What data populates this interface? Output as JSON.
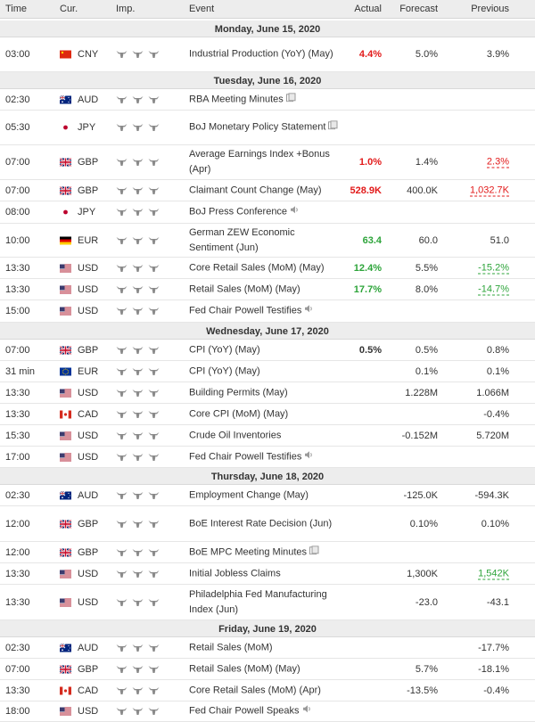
{
  "header": {
    "time": "Time",
    "currency": "Cur.",
    "importance": "Imp.",
    "event": "Event",
    "actual": "Actual",
    "forecast": "Forecast",
    "previous": "Previous"
  },
  "colors": {
    "header_bg": "#ededed",
    "positive": "#2da43a",
    "negative": "#e21a1a",
    "bull_icon": "#8a8a8a"
  },
  "icons": {
    "document": "document-icon",
    "speaker": "speaker-icon",
    "importance": "bull-icon"
  },
  "days": [
    {
      "date": "Monday, June 15, 2020",
      "events": [
        {
          "time": "03:00",
          "flag": "cn",
          "currency": "CNY",
          "event": "Industrial Production (YoY) (May)",
          "actual": "4.4%",
          "actual_color": "red",
          "forecast": "5.0%",
          "previous": "3.9%"
        }
      ]
    },
    {
      "date": "Tuesday, June 16, 2020",
      "events": [
        {
          "time": "02:30",
          "flag": "au",
          "currency": "AUD",
          "event": "RBA Meeting Minutes",
          "icon": "document",
          "actual": "",
          "forecast": "",
          "previous": ""
        },
        {
          "time": "05:30",
          "flag": "jp",
          "currency": "JPY",
          "event": "BoJ Monetary Policy Statement",
          "icon": "document",
          "actual": "",
          "forecast": "",
          "previous": ""
        },
        {
          "time": "07:00",
          "flag": "gb",
          "currency": "GBP",
          "event": "Average Earnings Index +Bonus (Apr)",
          "actual": "1.0%",
          "actual_color": "red",
          "forecast": "1.4%",
          "previous": "2.3%",
          "previous_color": "red"
        },
        {
          "time": "07:00",
          "flag": "gb",
          "currency": "GBP",
          "event": "Claimant Count Change (May)",
          "actual": "528.9K",
          "actual_color": "red",
          "forecast": "400.0K",
          "previous": "1,032.7K",
          "previous_color": "red"
        },
        {
          "time": "08:00",
          "flag": "jp",
          "currency": "JPY",
          "event": "BoJ Press Conference",
          "icon": "speaker",
          "actual": "",
          "forecast": "",
          "previous": ""
        },
        {
          "time": "10:00",
          "flag": "de",
          "currency": "EUR",
          "event": "German ZEW Economic Sentiment (Jun)",
          "actual": "63.4",
          "actual_color": "green",
          "forecast": "60.0",
          "previous": "51.0"
        },
        {
          "time": "13:30",
          "flag": "us",
          "currency": "USD",
          "event": "Core Retail Sales (MoM) (May)",
          "actual": "12.4%",
          "actual_color": "green",
          "forecast": "5.5%",
          "previous": "-15.2%",
          "previous_color": "green"
        },
        {
          "time": "13:30",
          "flag": "us",
          "currency": "USD",
          "event": "Retail Sales (MoM) (May)",
          "actual": "17.7%",
          "actual_color": "green",
          "forecast": "8.0%",
          "previous": "-14.7%",
          "previous_color": "green"
        },
        {
          "time": "15:00",
          "flag": "us",
          "currency": "USD",
          "event": "Fed Chair Powell Testifies",
          "icon": "speaker",
          "actual": "",
          "forecast": "",
          "previous": ""
        }
      ]
    },
    {
      "date": "Wednesday, June 17, 2020",
      "events": [
        {
          "time": "07:00",
          "flag": "gb",
          "currency": "GBP",
          "event": "CPI (YoY) (May)",
          "actual": "0.5%",
          "actual_color": "black",
          "forecast": "0.5%",
          "previous": "0.8%"
        },
        {
          "time": "31 min",
          "flag": "eu",
          "currency": "EUR",
          "event": "CPI (YoY) (May)",
          "actual": "",
          "forecast": "0.1%",
          "previous": "0.1%"
        },
        {
          "time": "13:30",
          "flag": "us",
          "currency": "USD",
          "event": "Building Permits (May)",
          "actual": "",
          "forecast": "1.228M",
          "previous": "1.066M"
        },
        {
          "time": "13:30",
          "flag": "ca",
          "currency": "CAD",
          "event": "Core CPI (MoM) (May)",
          "actual": "",
          "forecast": "",
          "previous": "-0.4%"
        },
        {
          "time": "15:30",
          "flag": "us",
          "currency": "USD",
          "event": "Crude Oil Inventories",
          "actual": "",
          "forecast": "-0.152M",
          "previous": "5.720M"
        },
        {
          "time": "17:00",
          "flag": "us",
          "currency": "USD",
          "event": "Fed Chair Powell Testifies",
          "icon": "speaker",
          "actual": "",
          "forecast": "",
          "previous": ""
        }
      ]
    },
    {
      "date": "Thursday, June 18, 2020",
      "events": [
        {
          "time": "02:30",
          "flag": "au",
          "currency": "AUD",
          "event": "Employment Change (May)",
          "actual": "",
          "forecast": "-125.0K",
          "previous": "-594.3K"
        },
        {
          "time": "12:00",
          "flag": "gb",
          "currency": "GBP",
          "event": "BoE Interest Rate Decision (Jun)",
          "actual": "",
          "forecast": "0.10%",
          "previous": "0.10%"
        },
        {
          "time": "12:00",
          "flag": "gb",
          "currency": "GBP",
          "event": "BoE MPC Meeting Minutes",
          "icon": "document",
          "actual": "",
          "forecast": "",
          "previous": ""
        },
        {
          "time": "13:30",
          "flag": "us",
          "currency": "USD",
          "event": "Initial Jobless Claims",
          "actual": "",
          "forecast": "1,300K",
          "previous": "1,542K",
          "previous_color": "green"
        },
        {
          "time": "13:30",
          "flag": "us",
          "currency": "USD",
          "event": "Philadelphia Fed Manufacturing Index (Jun)",
          "actual": "",
          "forecast": "-23.0",
          "previous": "-43.1"
        }
      ]
    },
    {
      "date": "Friday, June 19, 2020",
      "events": [
        {
          "time": "02:30",
          "flag": "au",
          "currency": "AUD",
          "event": "Retail Sales (MoM)",
          "actual": "",
          "forecast": "",
          "previous": "-17.7%"
        },
        {
          "time": "07:00",
          "flag": "gb",
          "currency": "GBP",
          "event": "Retail Sales (MoM) (May)",
          "actual": "",
          "forecast": "5.7%",
          "previous": "-18.1%"
        },
        {
          "time": "13:30",
          "flag": "ca",
          "currency": "CAD",
          "event": "Core Retail Sales (MoM) (Apr)",
          "actual": "",
          "forecast": "-13.5%",
          "previous": "-0.4%"
        },
        {
          "time": "18:00",
          "flag": "us",
          "currency": "USD",
          "event": "Fed Chair Powell Speaks",
          "icon": "speaker",
          "actual": "",
          "forecast": "",
          "previous": ""
        }
      ]
    }
  ]
}
